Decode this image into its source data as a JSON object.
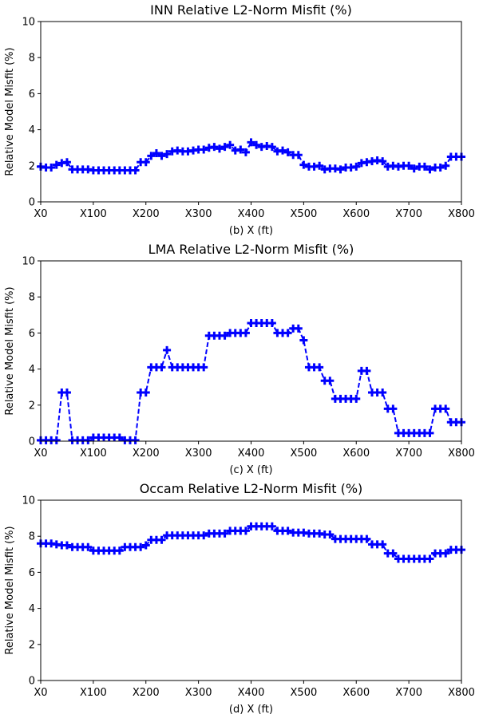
{
  "chart_data": [
    {
      "type": "line",
      "title": "INN Relative L2-Norm Misfit (%)",
      "xlabel": "(b) X (ft)",
      "ylabel": "Relative Model Misfit (%)",
      "xlim": [
        0,
        800
      ],
      "ylim": [
        0,
        10
      ],
      "xticks": [
        0,
        100,
        200,
        300,
        400,
        500,
        600,
        700,
        800
      ],
      "xtick_labels": [
        "X0",
        "X100",
        "X200",
        "X300",
        "X400",
        "X500",
        "X600",
        "X700",
        "X800"
      ],
      "yticks": [
        0,
        2,
        4,
        6,
        8,
        10
      ],
      "ytick_labels": [
        "0",
        "2",
        "4",
        "6",
        "8",
        "10"
      ],
      "line_style": "dashed",
      "marker": "plus",
      "color": "#0000ff",
      "grid": false,
      "series": [
        {
          "x": [
            0,
            10,
            20,
            30,
            40,
            50,
            60,
            70,
            80,
            90,
            100,
            110,
            120,
            130,
            140,
            150,
            160,
            170,
            180,
            190,
            200,
            210,
            220,
            230,
            240,
            250,
            260,
            270,
            280,
            290,
            300,
            310,
            320,
            330,
            340,
            350,
            360,
            370,
            380,
            390,
            400,
            410,
            420,
            430,
            440,
            450,
            460,
            470,
            480,
            490,
            500,
            510,
            520,
            530,
            540,
            550,
            560,
            570,
            580,
            590,
            600,
            610,
            620,
            630,
            640,
            650,
            660,
            670,
            680,
            690,
            700,
            710,
            720,
            730,
            740,
            750,
            760,
            770,
            780,
            790,
            800
          ],
          "y": [
            1.95,
            1.9,
            1.9,
            2.05,
            2.15,
            2.2,
            1.8,
            1.8,
            1.8,
            1.8,
            1.75,
            1.75,
            1.75,
            1.75,
            1.75,
            1.75,
            1.75,
            1.75,
            1.75,
            2.2,
            2.2,
            2.55,
            2.7,
            2.55,
            2.65,
            2.8,
            2.85,
            2.8,
            2.8,
            2.85,
            2.9,
            2.9,
            3.0,
            3.05,
            2.95,
            3.05,
            3.15,
            2.85,
            2.9,
            2.75,
            3.3,
            3.15,
            3.05,
            3.1,
            3.05,
            2.8,
            2.85,
            2.75,
            2.6,
            2.6,
            2.05,
            1.95,
            1.95,
            2.0,
            1.8,
            1.85,
            1.85,
            1.8,
            1.9,
            1.9,
            1.95,
            2.15,
            2.2,
            2.25,
            2.3,
            2.25,
            1.95,
            2.0,
            1.95,
            2.0,
            2.0,
            1.85,
            1.95,
            1.95,
            1.8,
            1.9,
            1.9,
            2.0,
            2.5,
            2.5,
            2.5
          ]
        }
      ]
    },
    {
      "type": "line",
      "title": "LMA Relative L2-Norm Misfit (%)",
      "xlabel": "(c) X (ft)",
      "ylabel": "Relative Model Misfit (%)",
      "xlim": [
        0,
        800
      ],
      "ylim": [
        0,
        10
      ],
      "xticks": [
        0,
        100,
        200,
        300,
        400,
        500,
        600,
        700,
        800
      ],
      "xtick_labels": [
        "X0",
        "X100",
        "X200",
        "X300",
        "X400",
        "X500",
        "X600",
        "X700",
        "X800"
      ],
      "yticks": [
        0,
        2,
        4,
        6,
        8,
        10
      ],
      "ytick_labels": [
        "0",
        "2",
        "4",
        "6",
        "8",
        "10"
      ],
      "line_style": "dashed",
      "marker": "plus",
      "color": "#0000ff",
      "grid": false,
      "series": [
        {
          "x": [
            0,
            10,
            20,
            30,
            40,
            50,
            60,
            70,
            80,
            90,
            100,
            110,
            120,
            130,
            140,
            150,
            160,
            170,
            180,
            190,
            200,
            210,
            220,
            230,
            240,
            250,
            260,
            270,
            280,
            290,
            300,
            310,
            320,
            330,
            340,
            350,
            360,
            370,
            380,
            390,
            400,
            410,
            420,
            430,
            440,
            450,
            460,
            470,
            480,
            490,
            500,
            510,
            520,
            530,
            540,
            550,
            560,
            570,
            580,
            590,
            600,
            610,
            620,
            630,
            640,
            650,
            660,
            670,
            680,
            690,
            700,
            710,
            720,
            730,
            740,
            750,
            760,
            770,
            780,
            790,
            800
          ],
          "y": [
            0.05,
            0.05,
            0.05,
            0.05,
            2.7,
            2.7,
            0.05,
            0.05,
            0.05,
            0.05,
            0.2,
            0.2,
            0.2,
            0.2,
            0.2,
            0.2,
            0.05,
            0.05,
            0.05,
            2.7,
            2.7,
            4.1,
            4.1,
            4.1,
            5.05,
            4.1,
            4.1,
            4.1,
            4.1,
            4.1,
            4.1,
            4.1,
            5.85,
            5.85,
            5.85,
            5.85,
            6.0,
            6.0,
            6.0,
            6.0,
            6.55,
            6.55,
            6.55,
            6.55,
            6.55,
            6.0,
            6.0,
            6.0,
            6.25,
            6.25,
            5.6,
            4.1,
            4.1,
            4.1,
            3.35,
            3.35,
            2.35,
            2.35,
            2.35,
            2.35,
            2.35,
            3.9,
            3.9,
            2.7,
            2.7,
            2.7,
            1.8,
            1.8,
            0.45,
            0.45,
            0.45,
            0.45,
            0.45,
            0.45,
            0.45,
            1.8,
            1.8,
            1.8,
            1.05,
            1.05,
            1.05
          ]
        }
      ]
    },
    {
      "type": "line",
      "title": "Occam Relative L2-Norm Misfit (%)",
      "xlabel": "(d) X (ft)",
      "ylabel": "Relative Model Misfit (%)",
      "xlim": [
        0,
        800
      ],
      "ylim": [
        0,
        10
      ],
      "xticks": [
        0,
        100,
        200,
        300,
        400,
        500,
        600,
        700,
        800
      ],
      "xtick_labels": [
        "X0",
        "X100",
        "X200",
        "X300",
        "X400",
        "X500",
        "X600",
        "X700",
        "X800"
      ],
      "yticks": [
        0,
        2,
        4,
        6,
        8,
        10
      ],
      "ytick_labels": [
        "0",
        "2",
        "4",
        "6",
        "8",
        "10"
      ],
      "line_style": "dashed",
      "marker": "plus",
      "color": "#0000ff",
      "grid": false,
      "series": [
        {
          "x": [
            0,
            10,
            20,
            30,
            40,
            50,
            60,
            70,
            80,
            90,
            100,
            110,
            120,
            130,
            140,
            150,
            160,
            170,
            180,
            190,
            200,
            210,
            220,
            230,
            240,
            250,
            260,
            270,
            280,
            290,
            300,
            310,
            320,
            330,
            340,
            350,
            360,
            370,
            380,
            390,
            400,
            410,
            420,
            430,
            440,
            450,
            460,
            470,
            480,
            490,
            500,
            510,
            520,
            530,
            540,
            550,
            560,
            570,
            580,
            590,
            600,
            610,
            620,
            630,
            640,
            650,
            660,
            670,
            680,
            690,
            700,
            710,
            720,
            730,
            740,
            750,
            760,
            770,
            780,
            790,
            800
          ],
          "y": [
            7.6,
            7.6,
            7.6,
            7.55,
            7.5,
            7.5,
            7.4,
            7.4,
            7.4,
            7.4,
            7.2,
            7.2,
            7.2,
            7.2,
            7.2,
            7.2,
            7.4,
            7.4,
            7.4,
            7.4,
            7.5,
            7.8,
            7.8,
            7.8,
            8.05,
            8.05,
            8.05,
            8.05,
            8.05,
            8.05,
            8.05,
            8.05,
            8.15,
            8.15,
            8.15,
            8.15,
            8.3,
            8.3,
            8.3,
            8.3,
            8.55,
            8.55,
            8.55,
            8.55,
            8.55,
            8.3,
            8.3,
            8.3,
            8.2,
            8.2,
            8.2,
            8.15,
            8.15,
            8.15,
            8.1,
            8.1,
            7.85,
            7.85,
            7.85,
            7.85,
            7.85,
            7.85,
            7.85,
            7.55,
            7.55,
            7.55,
            7.05,
            7.05,
            6.75,
            6.75,
            6.75,
            6.75,
            6.75,
            6.75,
            6.75,
            7.05,
            7.05,
            7.05,
            7.25,
            7.25,
            7.25
          ]
        }
      ]
    }
  ]
}
